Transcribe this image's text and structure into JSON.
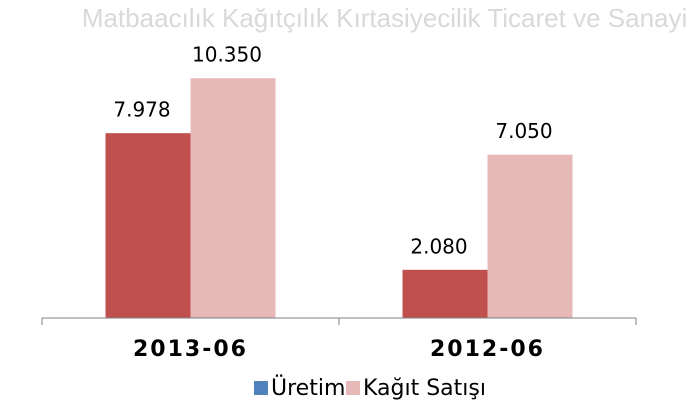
{
  "watermark": "Matbaacılık Kağıtçılık Kırtasiyecilik Ticaret ve Sanayi A.Ş.",
  "chart_data": {
    "type": "bar",
    "categories": [
      "2013-06",
      "2012-06"
    ],
    "series": [
      {
        "name": "Üretim",
        "color": "#c0504d",
        "legend_color": "#4f81bd",
        "values": [
          7978,
          2080
        ],
        "value_labels": [
          "7.978",
          "2.080"
        ]
      },
      {
        "name": "Kağıt Satışı",
        "color": "#e6b9b8",
        "values": [
          10350,
          7050
        ],
        "value_labels": [
          "10.350",
          "7.050"
        ]
      }
    ],
    "ylim": [
      0,
      12000
    ]
  }
}
